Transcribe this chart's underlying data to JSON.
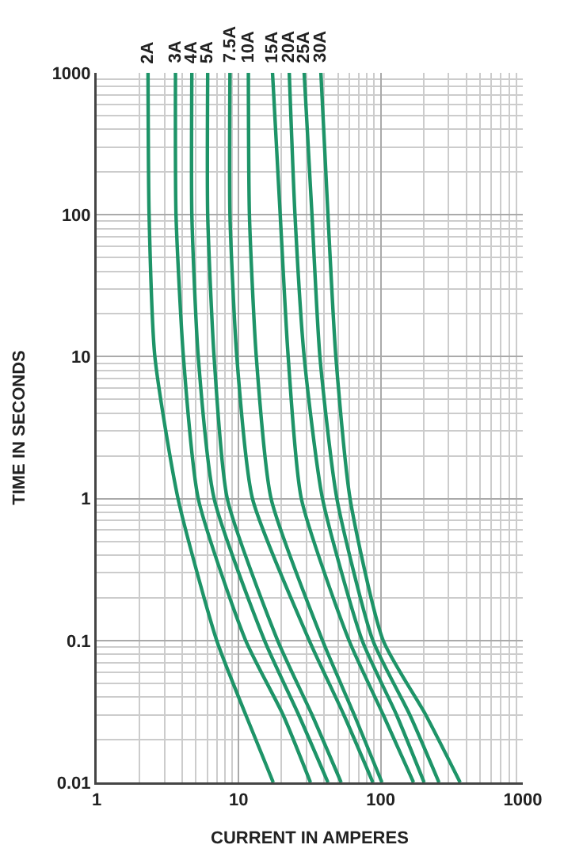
{
  "chart_data": {
    "type": "line",
    "xlabel": "CURRENT IN AMPERES",
    "ylabel": "TIME IN SECONDS",
    "log": "xy",
    "grid": true,
    "legend": false,
    "marker": "none",
    "line_style": "solid",
    "xlim": [
      1,
      1000
    ],
    "xticks": [
      1,
      10,
      100,
      1000
    ],
    "ylim": [
      0.01,
      1000
    ],
    "yticks": [
      0.01,
      0.1,
      1,
      10,
      100,
      1000
    ],
    "series": [
      {
        "name": "2A",
        "color": "#1e9468",
        "x": [
          2.3,
          2.34,
          2.57,
          3.74,
          7.0,
          11.2,
          17.5
        ],
        "values": [
          1000,
          100,
          10,
          1,
          0.1,
          0.03,
          0.01
        ]
      },
      {
        "name": "3A",
        "color": "#1e9468",
        "x": [
          3.59,
          3.62,
          4.08,
          5.19,
          11.2,
          20.5,
          32
        ],
        "values": [
          1000,
          100,
          10,
          1,
          0.1,
          0.03,
          0.01
        ]
      },
      {
        "name": "4A",
        "color": "#1e9468",
        "x": [
          4.68,
          4.68,
          5.19,
          6.71,
          15.2,
          26.4,
          42.5
        ],
        "values": [
          1000,
          100,
          10,
          1,
          0.1,
          0.03,
          0.01
        ]
      },
      {
        "name": "5A",
        "color": "#1e9468",
        "x": [
          6.05,
          6.05,
          6.71,
          8.31,
          18.8,
          32.8,
          52.6
        ],
        "values": [
          1000,
          100,
          10,
          1,
          0.1,
          0.03,
          0.01
        ]
      },
      {
        "name": "7.5A",
        "color": "#1e9468",
        "x": [
          8.68,
          8.68,
          9.7,
          12.5,
          31.4,
          54.9,
          88
        ],
        "values": [
          1000,
          100,
          10,
          1,
          0.1,
          0.03,
          0.01
        ]
      },
      {
        "name": "10A",
        "color": "#1e9468",
        "x": [
          11.7,
          11.9,
          13.3,
          16.9,
          38.9,
          65,
          102
        ],
        "values": [
          1000,
          100,
          10,
          1,
          0.1,
          0.03,
          0.01
        ]
      },
      {
        "name": "15A",
        "color": "#1e9468",
        "x": [
          17.3,
          19.6,
          22.3,
          27.6,
          59.8,
          104,
          170
        ],
        "values": [
          1000,
          100,
          10,
          1,
          0.1,
          0.03,
          0.01
        ]
      },
      {
        "name": "20A",
        "color": "#1e9468",
        "x": [
          22.7,
          24.9,
          28.9,
          38.9,
          74,
          129,
          202
        ],
        "values": [
          1000,
          100,
          10,
          1,
          0.1,
          0.03,
          0.01
        ]
      },
      {
        "name": "25A",
        "color": "#1e9468",
        "x": [
          28.9,
          32.8,
          37.3,
          49.1,
          88,
          160,
          257
        ],
        "values": [
          1000,
          100,
          10,
          1,
          0.1,
          0.03,
          0.01
        ]
      },
      {
        "name": "30A",
        "color": "#1e9468",
        "x": [
          37.9,
          42.5,
          48.3,
          60.8,
          104,
          207,
          362
        ],
        "values": [
          1000,
          100,
          10,
          1,
          0.1,
          0.03,
          0.01
        ]
      }
    ]
  }
}
